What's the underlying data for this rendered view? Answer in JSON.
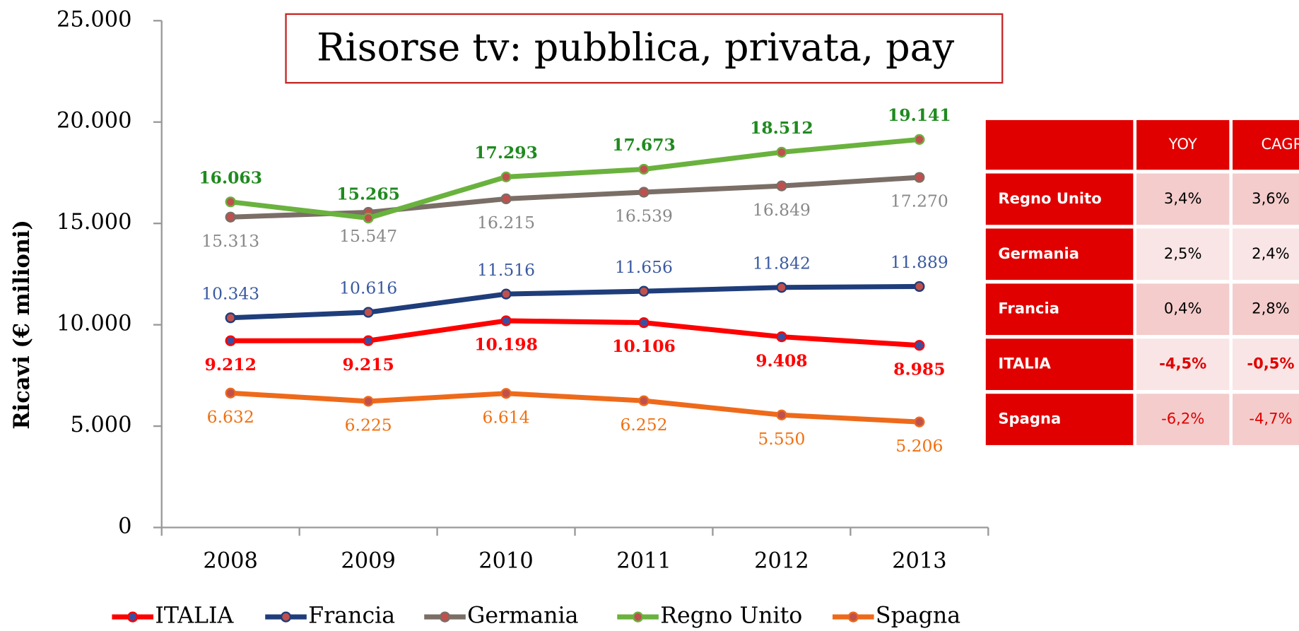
{
  "chart_data": {
    "type": "line",
    "title": "Risorse tv: pubblica, privata, pay",
    "y_label": "Ricavi (€ milioni)",
    "categories": [
      "2008",
      "2009",
      "2010",
      "2011",
      "2012",
      "2013"
    ],
    "ylim": [
      0,
      25000
    ],
    "yticks": [
      0,
      {
        "value": 5000,
        "label": "5.000"
      },
      {
        "value": 10000,
        "label": "10.000"
      },
      {
        "value": 15000,
        "label": "15.000"
      },
      {
        "value": 20000,
        "label": "20.000"
      },
      {
        "value": 25000,
        "label": "25.000"
      }
    ],
    "legend": "bottom",
    "series": [
      {
        "name": "ITALIA",
        "color": "#ff0000",
        "marker_color": "#3b4fa0",
        "label_color": "#ff0000",
        "values": [
          9212,
          9215,
          10198,
          10106,
          9408,
          8985
        ],
        "value_labels": [
          "9.212",
          "9.215",
          "10.198",
          "10.106",
          "9.408",
          "8.985"
        ]
      },
      {
        "name": "Francia",
        "color": "#1f3d7a",
        "marker_color": "#c0504d",
        "label_color": "#3b5aa0",
        "values": [
          10343,
          10616,
          11516,
          11656,
          11842,
          11889
        ],
        "value_labels": [
          "10.343",
          "10.616",
          "11.516",
          "11.656",
          "11.842",
          "11.889"
        ]
      },
      {
        "name": "Germania",
        "color": "#7a6e66",
        "marker_color": "#c0504d",
        "label_color": "#888888",
        "values": [
          15313,
          15547,
          16215,
          16539,
          16849,
          17270
        ],
        "value_labels": [
          "15.313",
          "15.547",
          "16.215",
          "16.539",
          "16.849",
          "17.270"
        ]
      },
      {
        "name": "Regno Unito",
        "color": "#6ab23e",
        "marker_color": "#c0504d",
        "label_color": "#1f8a1f",
        "values": [
          16063,
          15265,
          17293,
          17673,
          18512,
          19141
        ],
        "value_labels": [
          "16.063",
          "15.265",
          "17.293",
          "17.673",
          "18.512",
          "19.141"
        ]
      },
      {
        "name": "Spagna",
        "color": "#ee6a1a",
        "marker_color": "#c0504d",
        "label_color": "#f07010",
        "values": [
          6632,
          6225,
          6614,
          6252,
          5550,
          5206
        ],
        "value_labels": [
          "6.632",
          "6.225",
          "6.614",
          "6.252",
          "5.550",
          "5.206"
        ]
      }
    ]
  },
  "table": {
    "columns": [
      "YOY",
      "CAGR"
    ],
    "rows": [
      {
        "name": "Regno Unito",
        "values": [
          "3,4%",
          "3,6%"
        ]
      },
      {
        "name": "Germania",
        "values": [
          "2,5%",
          "2,4%"
        ]
      },
      {
        "name": "Francia",
        "values": [
          "0,4%",
          "2,8%"
        ]
      },
      {
        "name": "ITALIA",
        "values": [
          "-4,5%",
          "-0,5%"
        ]
      },
      {
        "name": "Spagna",
        "values": [
          "-6,2%",
          "-4,7%"
        ]
      }
    ]
  }
}
